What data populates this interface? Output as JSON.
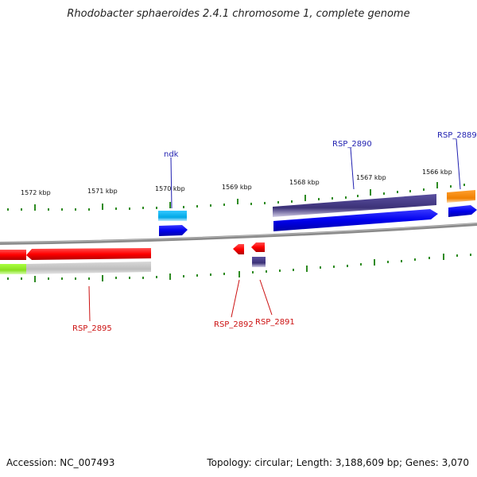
{
  "title": "Rhodobacter sphaeroides 2.4.1 chromosome 1, complete genome",
  "footer": {
    "accession": "Accession: NC_007493",
    "topology": "Topology: circular; Length: 3,188,609 bp; Genes: 3,070"
  },
  "colors": {
    "backbone": "#8a8a8a",
    "tick": "#2e8b22",
    "forward_label": "#1f1fb0",
    "reverse_label": "#cc1111"
  },
  "ticks": [
    "1572 kbp",
    "1571 kbp",
    "1570 kbp",
    "1569 kbp",
    "1568 kbp",
    "1567 kbp",
    "1566 kbp"
  ],
  "gene_labels": [
    "ndk",
    "RSP_2890",
    "RSP_2889",
    "RSP_2895",
    "RSP_2892",
    "RSP_2891"
  ]
}
